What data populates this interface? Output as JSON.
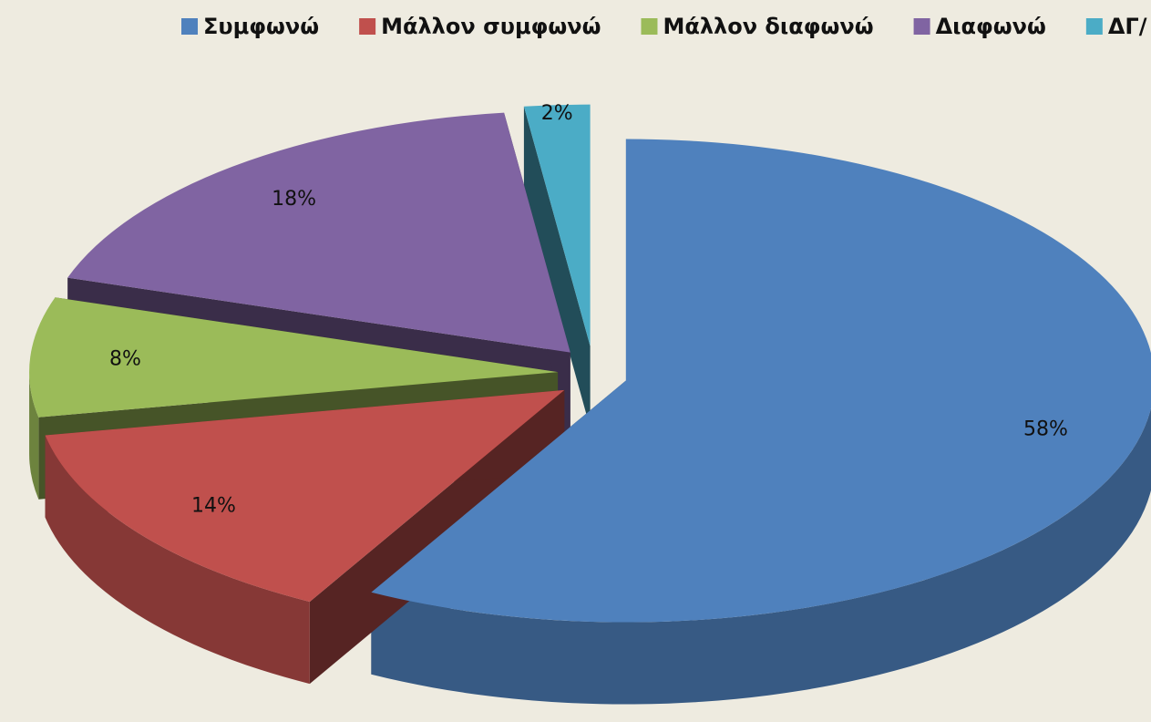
{
  "chart_data": {
    "type": "pie",
    "categories": [
      "Συμφωνώ",
      "Μάλλον συμφωνώ",
      "Μάλλον διαφωνώ",
      "Διαφωνώ",
      "ΔΓ/ ΔΑ"
    ],
    "values": [
      58,
      14,
      8,
      18,
      2
    ],
    "value_labels": [
      "58%",
      "14%",
      "8%",
      "18%",
      "2%"
    ],
    "colors": [
      "#4f81bd",
      "#c0504d",
      "#9bbb59",
      "#8064a2",
      "#4bacc6"
    ],
    "legend": "top"
  }
}
